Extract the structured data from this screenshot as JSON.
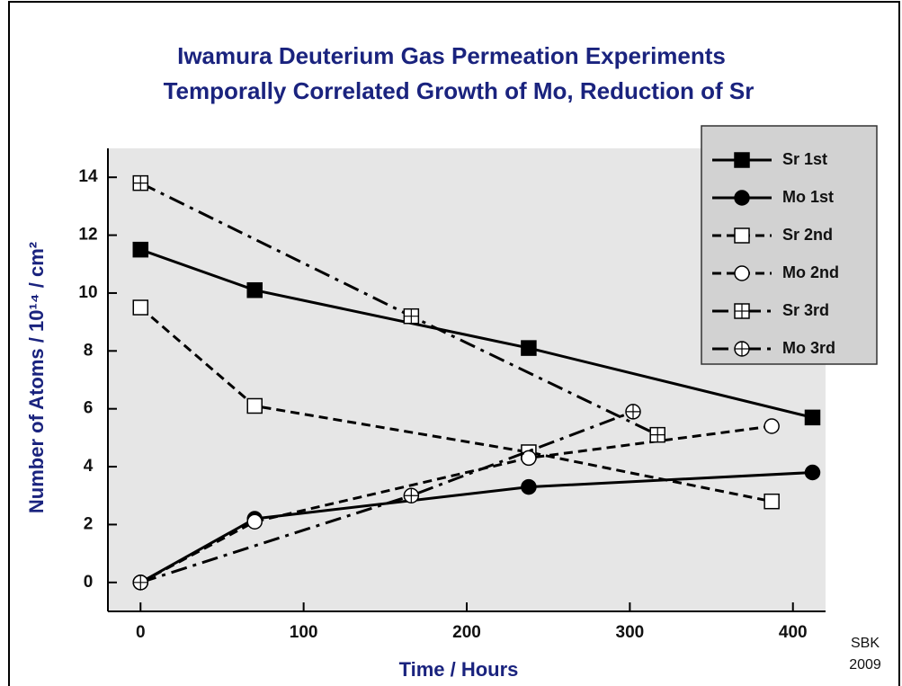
{
  "chart_data": {
    "type": "line",
    "title": [
      "Iwamura Deuterium Gas Permeation Experiments",
      "Temporally Correlated Growth of Mo, Reduction of Sr"
    ],
    "x_label": "Time / Hours",
    "y_label": "Number of Atoms / 10¹⁴ / cm²",
    "annotations": [
      "SBK",
      "2009"
    ],
    "xlim": [
      -20,
      420
    ],
    "xticks": [
      0,
      100,
      200,
      300,
      400
    ],
    "ylim": [
      -1,
      15
    ],
    "yticks": [
      0,
      2,
      4,
      6,
      8,
      10,
      12,
      14
    ],
    "legend": "upper right",
    "series": [
      {
        "name": "Sr 1st",
        "color": "#000000",
        "line": "solid",
        "marker": "square-filled",
        "x": [
          0,
          70,
          238,
          412
        ],
        "values": [
          11.5,
          10.1,
          8.1,
          5.7
        ]
      },
      {
        "name": "Mo 1st",
        "color": "#000000",
        "line": "solid",
        "marker": "circle-filled",
        "x": [
          0,
          70,
          238,
          412
        ],
        "values": [
          0,
          2.2,
          3.3,
          3.8
        ]
      },
      {
        "name": "Sr 2nd",
        "color": "#000000",
        "line": "dash",
        "marker": "square-open",
        "x": [
          0,
          70,
          238,
          387
        ],
        "values": [
          9.5,
          6.1,
          4.5,
          2.8
        ]
      },
      {
        "name": "Mo 2nd",
        "color": "#000000",
        "line": "dash",
        "marker": "circle-open",
        "x": [
          0,
          70,
          238,
          387
        ],
        "values": [
          0,
          2.1,
          4.3,
          5.4
        ]
      },
      {
        "name": "Sr 3rd",
        "color": "#000000",
        "line": "dashdot",
        "marker": "square-cross",
        "x": [
          0,
          166,
          317
        ],
        "values": [
          13.8,
          9.2,
          5.1
        ]
      },
      {
        "name": "Mo 3rd",
        "color": "#000000",
        "line": "dashdot",
        "marker": "circle-cross",
        "x": [
          0,
          166,
          302
        ],
        "values": [
          0,
          3.0,
          5.9
        ]
      }
    ]
  }
}
